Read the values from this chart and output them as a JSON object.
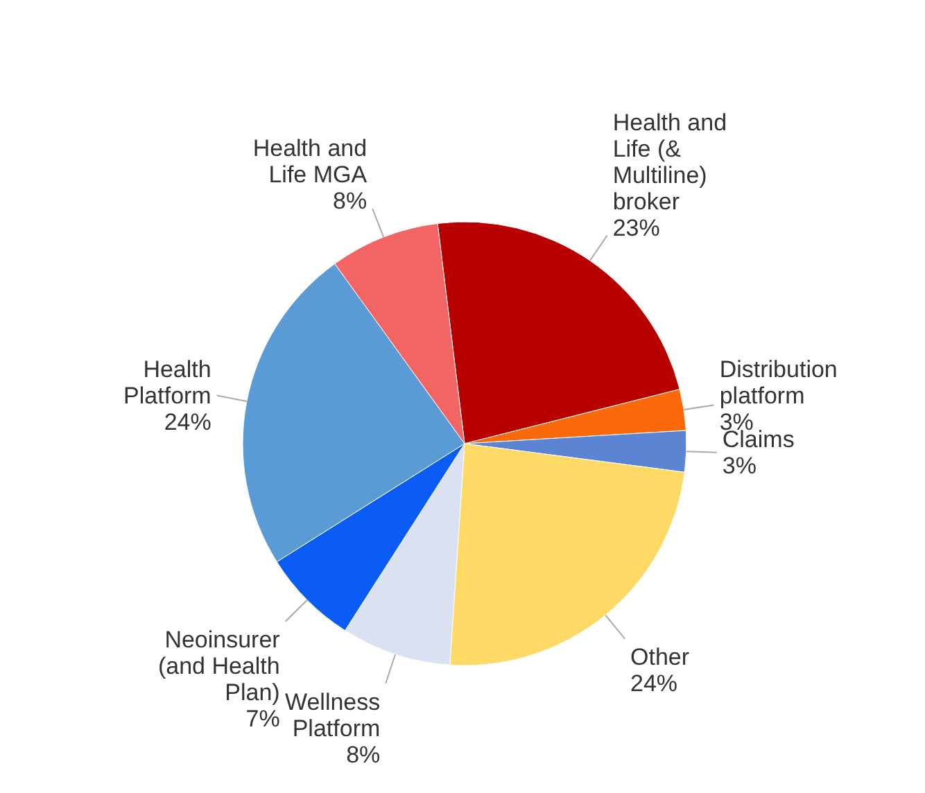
{
  "chart_data": {
    "type": "pie",
    "categories": [
      "Health and Life (& Multiline) broker",
      "Distribution platform",
      "Claims",
      "Other",
      "Wellness Platform",
      "Neoinsurer (and Health Plan)",
      "Health Platform",
      "Health and Life MGA"
    ],
    "values": [
      23,
      3,
      3,
      24,
      8,
      7,
      24,
      8
    ],
    "value_labels": [
      "23%",
      "3%",
      "3%",
      "24%",
      "8%",
      "7%",
      "24%",
      "8%"
    ],
    "colors": [
      "#b80000",
      "#fa6a0a",
      "#5b85d2",
      "#ffd966",
      "#d9e1f2",
      "#0b5cf5",
      "#5b9bd5",
      "#f36565"
    ]
  }
}
